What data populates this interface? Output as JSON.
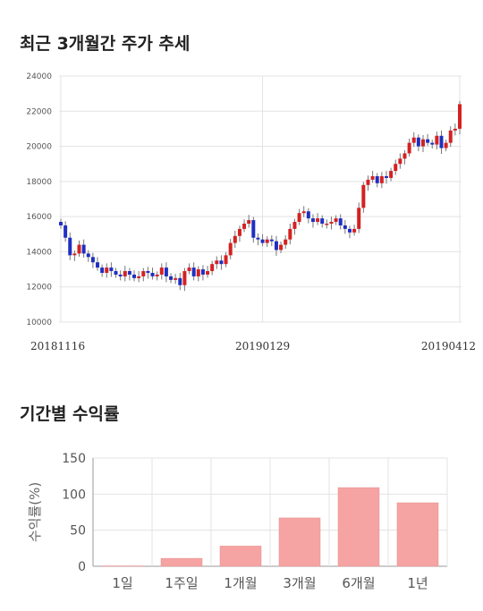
{
  "section1_title": "최근 3개월간 주가 추세",
  "section2_title": "기간별 수익률",
  "colors": {
    "up": "#d42121",
    "down": "#1f2fc2",
    "bar": "#f5a3a3",
    "grid": "#e3e3e3"
  },
  "chart_data": [
    {
      "type": "candlestick",
      "title": "최근 3개월간 주가 추세",
      "ylim": [
        10000,
        24000
      ],
      "yticks": [
        10000,
        12000,
        14000,
        16000,
        18000,
        20000,
        22000,
        24000
      ],
      "ytick_labels": [
        "10000",
        "12000",
        "14000",
        "16000",
        "18000",
        "20000",
        "22000",
        "24000"
      ],
      "xtick_labels": [
        "20181116",
        "20190129",
        "20190412"
      ],
      "grid": true,
      "closes": [
        15500,
        14800,
        13800,
        13900,
        14400,
        13900,
        13700,
        13400,
        13100,
        12800,
        13100,
        12900,
        12700,
        12600,
        12900,
        12700,
        12500,
        12600,
        12900,
        12800,
        12600,
        12700,
        13100,
        12600,
        12400,
        12500,
        12100,
        12900,
        13100,
        12600,
        13000,
        12700,
        12900,
        13300,
        13500,
        13300,
        13800,
        14500,
        14900,
        15300,
        15600,
        15800,
        14800,
        14700,
        14500,
        14700,
        14600,
        14100,
        14400,
        14700,
        15300,
        15700,
        16200,
        16300,
        15900,
        15700,
        15900,
        15600,
        15600,
        15700,
        15900,
        15500,
        15300,
        15100,
        15300,
        16500,
        17800,
        18100,
        18300,
        17900,
        18300,
        18200,
        18600,
        19000,
        19300,
        19600,
        20200,
        20500,
        20000,
        20400,
        20200,
        20100,
        20600,
        19900,
        20200,
        20900,
        21000,
        22400
      ],
      "series_colors": [
        "#d42121",
        "#1f2fc2"
      ]
    },
    {
      "type": "bar",
      "title": "기간별 수익률",
      "categories": [
        "1일",
        "1주일",
        "1개월",
        "3개월",
        "6개월",
        "1년"
      ],
      "values": [
        0.5,
        11,
        28,
        67,
        109,
        88
      ],
      "ylabel": "수익률(%)",
      "ylim": [
        0,
        150
      ],
      "yticks": [
        0,
        50,
        100,
        150
      ],
      "ytick_labels": [
        "0",
        "50",
        "100",
        "150"
      ],
      "grid": true
    }
  ]
}
